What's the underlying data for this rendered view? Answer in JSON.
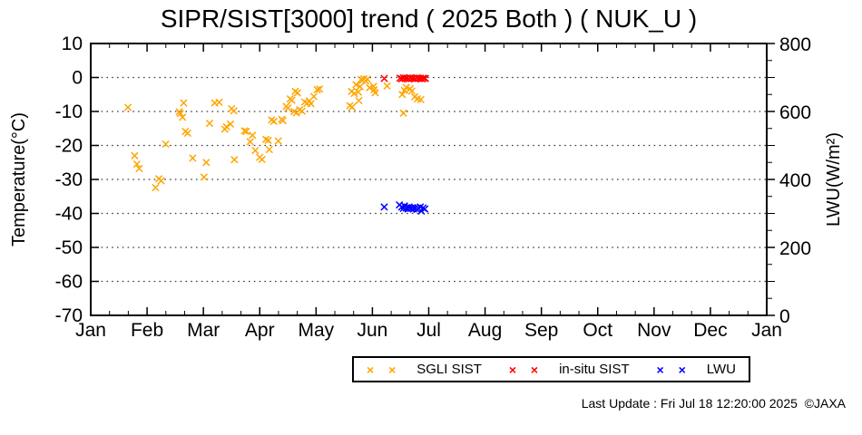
{
  "title": "SIPR/SIST[3000] trend ( 2025 Both ) ( NUK_U )",
  "footer": {
    "last_update": "Last Update : Fri Jul 18 12:20:00 2025  ©JAXA"
  },
  "chart_data": {
    "type": "scatter",
    "title": "SIPR/SIST[3000] trend ( 2025 Both ) ( NUK_U )",
    "grid": "dotted-horizontal",
    "legend_position": "bottom-center-outside",
    "x_axis": {
      "range_months": [
        0,
        12
      ],
      "tick_labels": [
        "Jan",
        "Feb",
        "Mar",
        "Apr",
        "May",
        "Jun",
        "Jul",
        "Aug",
        "Sep",
        "Oct",
        "Nov",
        "Dec",
        "Jan"
      ],
      "minor_ticks_per_month": 2
    },
    "y_axis": {
      "label": "Temperature(°C)",
      "range": [
        -70,
        10
      ],
      "ticks": [
        10,
        0,
        -10,
        -20,
        -30,
        -40,
        -50,
        -60,
        -70
      ],
      "grid_at": [
        0,
        -10,
        -20,
        -30,
        -40,
        -50,
        -60
      ]
    },
    "y2_axis": {
      "label": "LWU(W/m²)",
      "range": [
        0,
        800
      ],
      "ticks": [
        800,
        600,
        400,
        200,
        0
      ],
      "minor_step": 50
    },
    "series": [
      {
        "name": "SGLI SIST",
        "color": "#FFA500",
        "marker": "x",
        "axis": "y1",
        "points": [
          [
            0.66,
            -8.8
          ],
          [
            0.78,
            -23.0
          ],
          [
            0.82,
            -25.5
          ],
          [
            0.86,
            -26.8
          ],
          [
            1.15,
            -32.4
          ],
          [
            1.21,
            -29.8
          ],
          [
            1.25,
            -30.4
          ],
          [
            1.33,
            -19.6
          ],
          [
            1.57,
            -10.1
          ],
          [
            1.59,
            -10.6
          ],
          [
            1.63,
            -11.7
          ],
          [
            1.65,
            -7.5
          ],
          [
            1.68,
            -15.9
          ],
          [
            1.72,
            -16.4
          ],
          [
            1.81,
            -23.7
          ],
          [
            2.01,
            -29.3
          ],
          [
            2.05,
            -25.0
          ],
          [
            2.11,
            -13.5
          ],
          [
            2.2,
            -7.5
          ],
          [
            2.28,
            -7.3
          ],
          [
            2.38,
            -15.2
          ],
          [
            2.41,
            -14.5
          ],
          [
            2.48,
            -13.7
          ],
          [
            2.5,
            -9.2
          ],
          [
            2.54,
            -9.8
          ],
          [
            2.55,
            -24.2
          ],
          [
            2.73,
            -15.7
          ],
          [
            2.76,
            -15.9
          ],
          [
            2.83,
            -18.9
          ],
          [
            2.87,
            -17.0
          ],
          [
            2.92,
            -21.5
          ],
          [
            3.0,
            -23.5
          ],
          [
            3.04,
            -24.1
          ],
          [
            3.11,
            -18.2
          ],
          [
            3.15,
            -18.5
          ],
          [
            3.17,
            -21.2
          ],
          [
            3.21,
            -12.5
          ],
          [
            3.25,
            -12.9
          ],
          [
            3.33,
            -18.7
          ],
          [
            3.39,
            -12.3
          ],
          [
            3.41,
            -12.7
          ],
          [
            3.47,
            -8.5
          ],
          [
            3.5,
            -9.0
          ],
          [
            3.54,
            -6.3
          ],
          [
            3.57,
            -6.7
          ],
          [
            3.61,
            -10.0
          ],
          [
            3.63,
            -4.1
          ],
          [
            3.65,
            -10.4
          ],
          [
            3.67,
            -4.5
          ],
          [
            3.71,
            -9.5
          ],
          [
            3.75,
            -9.9
          ],
          [
            3.8,
            -7.2
          ],
          [
            3.84,
            -7.6
          ],
          [
            3.88,
            -6.9
          ],
          [
            3.91,
            -7.7
          ],
          [
            3.96,
            -5.6
          ],
          [
            4.02,
            -3.6
          ],
          [
            4.06,
            -3.4
          ],
          [
            4.6,
            -8.3
          ],
          [
            4.63,
            -4.1
          ],
          [
            4.64,
            -8.7
          ],
          [
            4.68,
            -4.7
          ],
          [
            4.71,
            -2.1
          ],
          [
            4.75,
            -4.3
          ],
          [
            4.76,
            -6.8
          ],
          [
            4.78,
            -2.7
          ],
          [
            4.8,
            -0.6
          ],
          [
            4.82,
            -0.9
          ],
          [
            4.85,
            -0.4
          ],
          [
            4.88,
            -1.0
          ],
          [
            4.91,
            -0.5
          ],
          [
            4.95,
            -3.0
          ],
          [
            5.02,
            -2.6
          ],
          [
            5.03,
            -3.6
          ],
          [
            5.05,
            -4.5
          ],
          [
            5.26,
            -2.5
          ],
          [
            5.53,
            -5.0
          ],
          [
            5.55,
            -10.5
          ],
          [
            5.57,
            -3.8
          ],
          [
            5.6,
            -2.9
          ],
          [
            5.67,
            -3.3
          ],
          [
            5.7,
            -4.0
          ],
          [
            5.75,
            -5.7
          ],
          [
            5.8,
            -6.3
          ],
          [
            5.86,
            -6.5
          ]
        ]
      },
      {
        "name": "in-situ SIST",
        "color": "#FF0000",
        "marker": "x",
        "axis": "y1",
        "points": [
          [
            5.21,
            -0.3
          ],
          [
            5.49,
            -0.2
          ],
          [
            5.52,
            -0.4
          ],
          [
            5.55,
            -0.1
          ],
          [
            5.58,
            -0.3
          ],
          [
            5.61,
            -0.2
          ],
          [
            5.64,
            -0.4
          ],
          [
            5.67,
            -0.1
          ],
          [
            5.7,
            -0.3
          ],
          [
            5.73,
            -0.2
          ],
          [
            5.76,
            -0.4
          ],
          [
            5.79,
            -0.1
          ],
          [
            5.82,
            -0.3
          ],
          [
            5.85,
            -0.2
          ],
          [
            5.88,
            -0.4
          ],
          [
            5.91,
            -0.2
          ],
          [
            5.94,
            -0.3
          ]
        ]
      },
      {
        "name": "LWU",
        "color": "#0000FF",
        "marker": "x",
        "axis": "y2",
        "points": [
          [
            5.21,
            319
          ],
          [
            5.48,
            325
          ],
          [
            5.52,
            319
          ],
          [
            5.55,
            315
          ],
          [
            5.57,
            322
          ],
          [
            5.6,
            316
          ],
          [
            5.63,
            313
          ],
          [
            5.65,
            319
          ],
          [
            5.68,
            315
          ],
          [
            5.71,
            317
          ],
          [
            5.73,
            313
          ],
          [
            5.76,
            316
          ],
          [
            5.79,
            312
          ],
          [
            5.82,
            315
          ],
          [
            5.85,
            319
          ],
          [
            5.87,
            307
          ],
          [
            5.9,
            316
          ],
          [
            5.93,
            313
          ]
        ]
      }
    ]
  }
}
